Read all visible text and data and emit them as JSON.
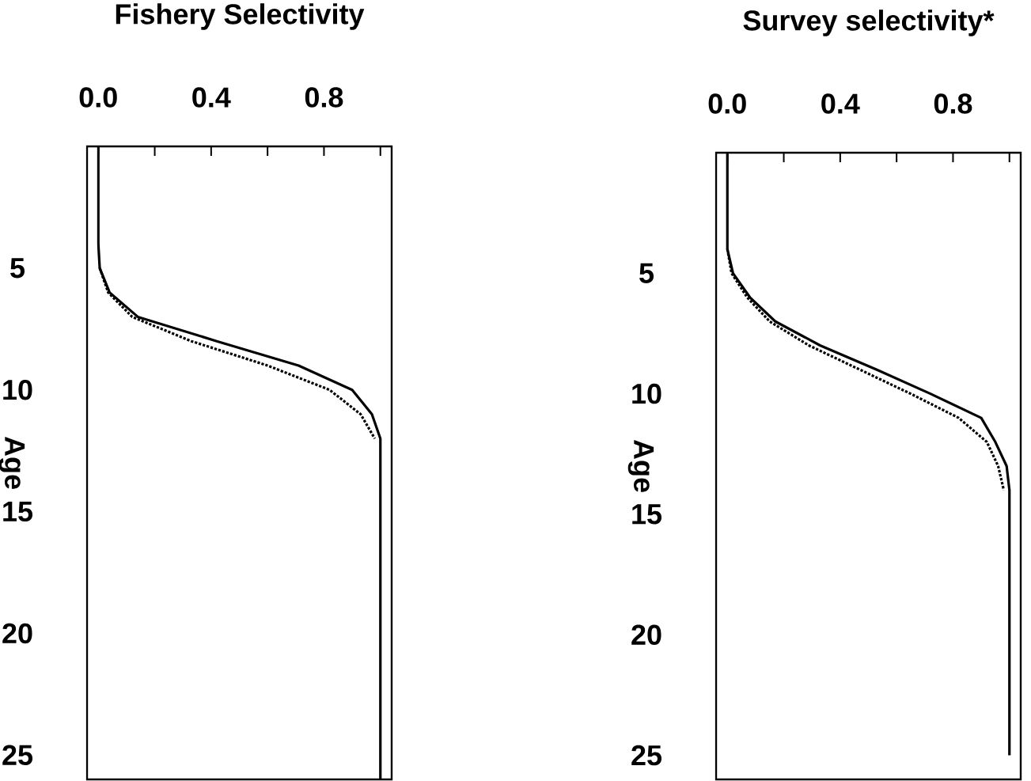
{
  "chart_data": [
    {
      "type": "line",
      "title": "Fishery Selectivity",
      "ylabel": "Age",
      "ylim": [
        26,
        0
      ],
      "yticks": [
        {
          "value": 5,
          "label": "5"
        },
        {
          "value": 10,
          "label": "10"
        },
        {
          "value": 15,
          "label": "15"
        },
        {
          "value": 20,
          "label": "20"
        },
        {
          "value": 25,
          "label": "25"
        }
      ],
      "xlim": [
        -0.04,
        1.04
      ],
      "xticks": [
        {
          "value": 0,
          "label": "0.0"
        },
        {
          "value": 0.2,
          "label": null
        },
        {
          "value": 0.4,
          "label": "0.4"
        },
        {
          "value": 0.6,
          "label": null
        },
        {
          "value": 0.8,
          "label": "0.8"
        },
        {
          "value": 1.0,
          "label": null
        }
      ],
      "series": [
        {
          "color": "#000000",
          "line_style": "solid",
          "x": [
            0.0,
            0.0,
            0.005,
            0.04,
            0.14,
            0.42,
            0.71,
            0.9,
            0.97,
            1.0,
            1.0
          ],
          "values": [
            0,
            4,
            5,
            6,
            7,
            8,
            9,
            10,
            11,
            12,
            26
          ]
        },
        {
          "color": "#000000",
          "line_style": "dotted",
          "x": [
            0.005,
            0.035,
            0.12,
            0.33,
            0.6,
            0.82,
            0.93,
            0.98
          ],
          "values": [
            5,
            6,
            7,
            8,
            9,
            10,
            11,
            12
          ]
        }
      ]
    },
    {
      "type": "line",
      "title": "Survey selectivity*",
      "ylabel": "Age",
      "ylim": [
        26,
        0
      ],
      "yticks": [
        {
          "value": 5,
          "label": "5"
        },
        {
          "value": 10,
          "label": "10"
        },
        {
          "value": 15,
          "label": "15"
        },
        {
          "value": 20,
          "label": "20"
        },
        {
          "value": 25,
          "label": "25"
        }
      ],
      "xlim": [
        -0.04,
        1.04
      ],
      "xticks": [
        {
          "value": 0,
          "label": "0.0"
        },
        {
          "value": 0.2,
          "label": null
        },
        {
          "value": 0.4,
          "label": "0.4"
        },
        {
          "value": 0.6,
          "label": null
        },
        {
          "value": 0.8,
          "label": "0.8"
        },
        {
          "value": 1.0,
          "label": null
        }
      ],
      "series": [
        {
          "color": "#000000",
          "line_style": "solid",
          "x": [
            0.0,
            0.0,
            0.02,
            0.08,
            0.17,
            0.33,
            0.53,
            0.72,
            0.9,
            0.95,
            0.99,
            1.0,
            1.0
          ],
          "values": [
            0,
            4,
            5,
            6,
            7,
            8,
            9,
            10,
            11,
            12,
            13,
            14,
            25
          ]
        },
        {
          "color": "#000000",
          "line_style": "dotted",
          "x": [
            0.0,
            0.015,
            0.07,
            0.15,
            0.29,
            0.47,
            0.65,
            0.82,
            0.92,
            0.96,
            0.98
          ],
          "values": [
            4,
            5,
            6,
            7,
            8,
            9,
            10,
            11,
            12,
            13,
            14
          ]
        }
      ]
    }
  ]
}
